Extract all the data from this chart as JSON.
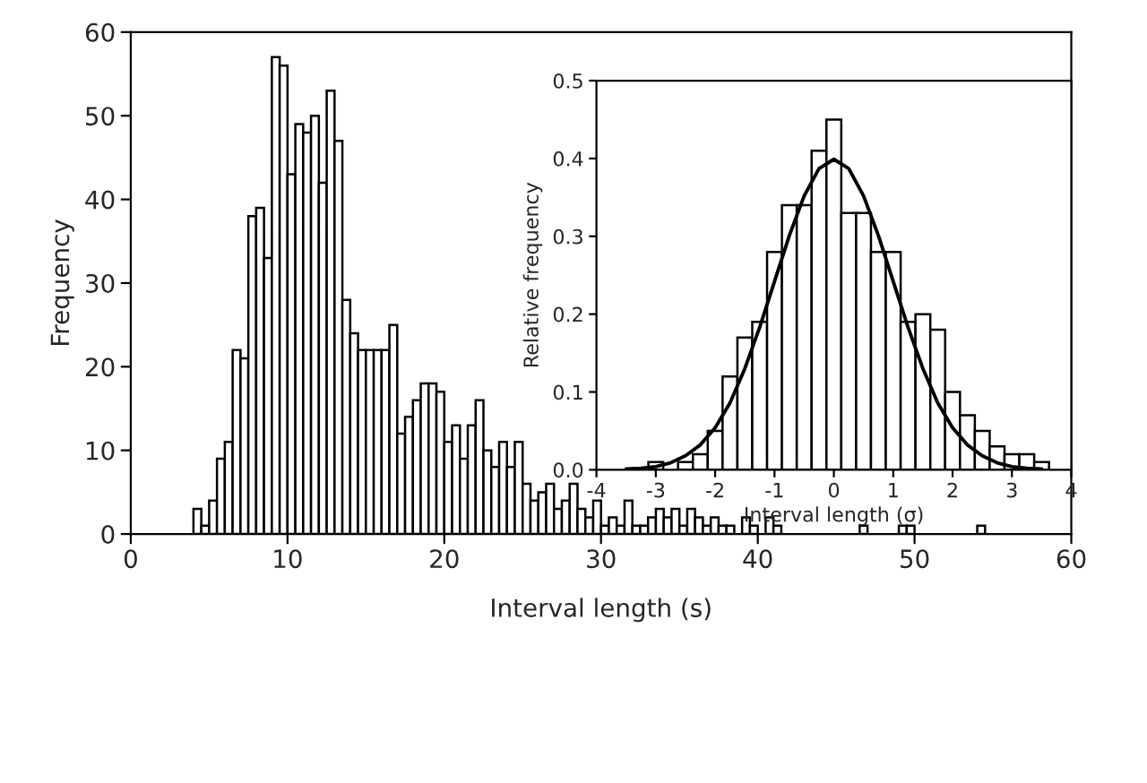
{
  "chart_data": [
    {
      "type": "histogram",
      "xlabel": "Interval length (s)",
      "ylabel": "Frequency",
      "color": "#ffffff",
      "bins": [
        4.0,
        4.5,
        5.0,
        5.5,
        6.0,
        6.5,
        7.0,
        7.5,
        8.0,
        8.5,
        9.0,
        9.5,
        10.0,
        10.5,
        11.0,
        11.5,
        12.0,
        12.5,
        13.0,
        13.5,
        14.0,
        14.5,
        15.0,
        15.5,
        16.0,
        16.5,
        17.0,
        17.5,
        18.0,
        18.5,
        19.0,
        19.5,
        20.0,
        20.5,
        21.0,
        21.5,
        22.0,
        22.5,
        23.0,
        23.5,
        24.0,
        24.5,
        25.0,
        25.5,
        26.0,
        26.5,
        27.0,
        27.5,
        28.0,
        28.5,
        29.0,
        29.5,
        30.0,
        30.5,
        31.0,
        31.5,
        32.0,
        32.5,
        33.0,
        33.5,
        34.0,
        34.5,
        35.0,
        35.5,
        36.0,
        36.5,
        37.0,
        37.5,
        38.0,
        38.5,
        39.0,
        39.5,
        40.0,
        40.5,
        41.0,
        41.5,
        42.0,
        42.5,
        43.0,
        43.5,
        44.0,
        44.5,
        45.0,
        45.5,
        46.0,
        46.5,
        47.0,
        47.5,
        48.0,
        48.5,
        49.0,
        49.5,
        50.0,
        50.5,
        51.0,
        51.5,
        52.0,
        52.5,
        53.0,
        53.5,
        54.0,
        54.5,
        55.0
      ],
      "values": [
        3,
        1,
        4,
        9,
        11,
        22,
        21,
        38,
        39,
        33,
        57,
        56,
        43,
        49,
        48,
        50,
        42,
        53,
        47,
        28,
        24,
        22,
        22,
        22,
        22,
        25,
        12,
        14,
        16,
        18,
        18,
        17,
        11,
        13,
        9,
        13,
        16,
        10,
        8,
        11,
        8,
        11,
        6,
        4,
        5,
        6,
        3,
        4,
        6,
        3,
        2,
        4,
        1,
        2,
        1,
        4,
        1,
        1,
        2,
        3,
        2,
        3,
        1,
        3,
        2,
        1,
        2,
        1,
        1,
        0,
        2,
        1,
        0,
        2,
        1,
        0,
        0,
        0,
        0,
        0,
        0,
        0,
        0,
        0,
        0,
        1,
        0,
        0,
        0,
        0,
        1,
        1,
        0,
        0,
        0,
        0,
        0,
        0,
        0,
        0,
        1,
        0
      ],
      "xlim": [
        0,
        60
      ],
      "xticks": [
        0,
        10,
        20,
        30,
        40,
        50,
        60
      ],
      "ylim": [
        0,
        60
      ],
      "yticks": [
        0,
        10,
        20,
        30,
        40,
        50,
        60
      ],
      "grid": false
    },
    {
      "type": "histogram",
      "xlabel": "Interval length (σ)",
      "ylabel": "Relative frequency",
      "series": [
        {
          "type": "histogram",
          "color": "#ffffff",
          "bins": [
            -3.125,
            -2.875,
            -2.625,
            -2.375,
            -2.125,
            -1.875,
            -1.625,
            -1.375,
            -1.125,
            -0.875,
            -0.625,
            -0.375,
            -0.125,
            0.125,
            0.375,
            0.625,
            0.875,
            1.125,
            1.375,
            1.625,
            1.875,
            2.125,
            2.375,
            2.625,
            2.875,
            3.125,
            3.375,
            3.625
          ],
          "values": [
            0.01,
            0.0,
            0.01,
            0.02,
            0.05,
            0.12,
            0.17,
            0.19,
            0.28,
            0.34,
            0.34,
            0.41,
            0.45,
            0.33,
            0.33,
            0.28,
            0.28,
            0.19,
            0.2,
            0.18,
            0.1,
            0.07,
            0.05,
            0.03,
            0.02,
            0.02,
            0.01
          ]
        },
        {
          "type": "line",
          "color": "#000000",
          "x": [
            -3.5,
            -3.25,
            -3.0,
            -2.75,
            -2.5,
            -2.25,
            -2.0,
            -1.75,
            -1.5,
            -1.25,
            -1.0,
            -0.75,
            -0.5,
            -0.25,
            0.0,
            0.25,
            0.5,
            0.75,
            1.0,
            1.25,
            1.5,
            1.75,
            2.0,
            2.25,
            2.5,
            2.75,
            3.0,
            3.25,
            3.5
          ],
          "values": [
            0.001,
            0.002,
            0.004,
            0.009,
            0.018,
            0.032,
            0.054,
            0.086,
            0.13,
            0.183,
            0.242,
            0.301,
            0.352,
            0.387,
            0.399,
            0.387,
            0.352,
            0.301,
            0.242,
            0.183,
            0.13,
            0.086,
            0.054,
            0.032,
            0.018,
            0.009,
            0.004,
            0.002,
            0.001
          ]
        }
      ],
      "xlim": [
        -4,
        4
      ],
      "xticks": [
        -4,
        -3,
        -2,
        -1,
        0,
        1,
        2,
        3,
        4
      ],
      "ylim": [
        0,
        0.5
      ],
      "yticks": [
        {
          "value": 0,
          "label": "0.0"
        },
        {
          "value": 0.1,
          "label": "0.1"
        },
        {
          "value": 0.2,
          "label": "0.2"
        },
        {
          "value": 0.3,
          "label": "0.3"
        },
        {
          "value": 0.4,
          "label": "0.4"
        },
        {
          "value": 0.5,
          "label": "0.5"
        }
      ],
      "grid": false
    }
  ]
}
